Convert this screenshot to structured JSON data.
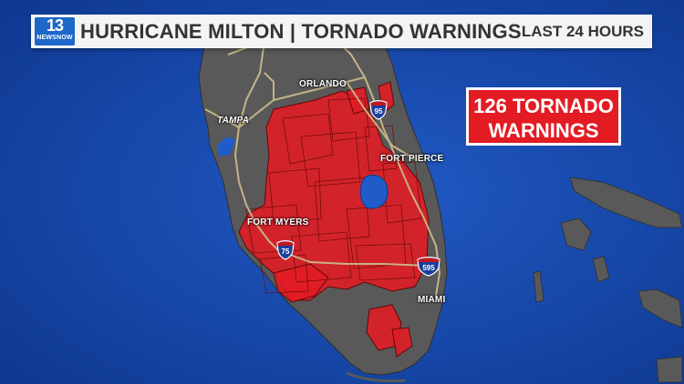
{
  "header": {
    "logo_number": "13",
    "logo_sub": "NEWSNOW",
    "title": "HURRICANE MILTON | TORNADO WARNINGS",
    "subtitle": "LAST 24 HOURS"
  },
  "badge": {
    "line1": "126 TORNADO",
    "line2": "WARNINGS",
    "count": 126
  },
  "cities": {
    "orlando": "ORLANDO",
    "tampa": "TAMPA",
    "fort_pierce": "FORT PIERCE",
    "fort_myers": "FORT MYERS",
    "miami": "MIAMI"
  },
  "highways": {
    "i95": "95",
    "i75": "75",
    "i595": "595"
  },
  "colors": {
    "ocean": "#1747a8",
    "land": "#5a5a5a",
    "warning": "#e31b23",
    "road": "#c9b98a"
  }
}
